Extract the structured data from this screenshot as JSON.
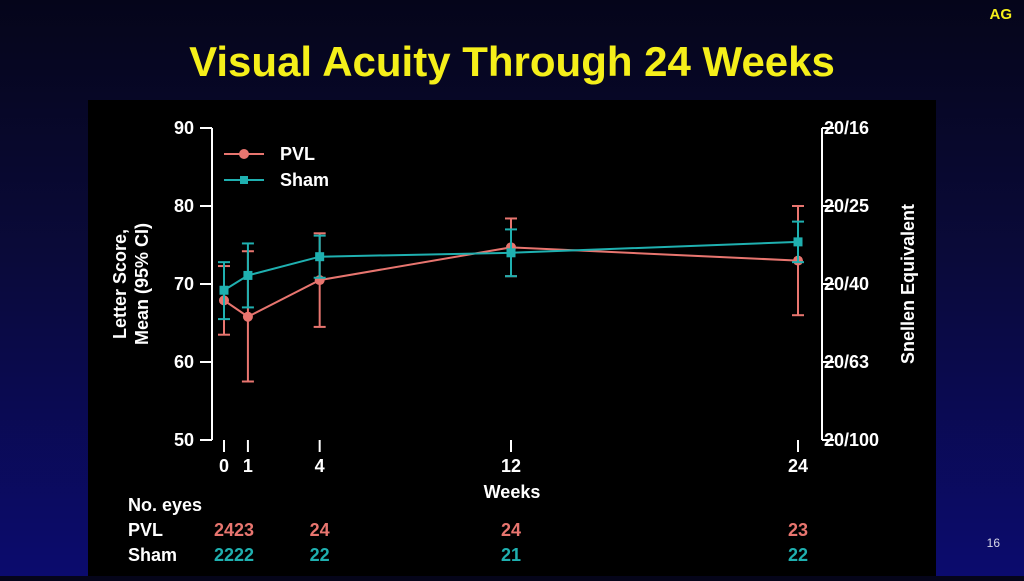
{
  "corner_tag": "AG",
  "slide_title": "Visual Acuity Through 24 Weeks",
  "page_number": "16",
  "colors": {
    "pvl": "#e8756f",
    "sham": "#1fb0b0",
    "axis": "#ffffff",
    "title": "#f5ef1a"
  },
  "chart_data": {
    "type": "line",
    "xlabel": "Weeks",
    "ylabel_line1": "Letter Score,",
    "ylabel_line2": "Mean (95% CI)",
    "y2label": "Snellen Equivalent",
    "x_ticks": [
      "0",
      "1",
      "4",
      "12",
      "24"
    ],
    "x_tick_values": [
      0,
      1,
      4,
      12,
      24
    ],
    "xlim": [
      0,
      24
    ],
    "ylim": [
      50,
      90
    ],
    "y_ticks": [
      50,
      60,
      70,
      80,
      90
    ],
    "y_tick_labels": [
      "50",
      "60",
      "70",
      "80",
      "90"
    ],
    "y2_ticks": [
      50,
      60,
      70,
      80,
      90
    ],
    "y2_tick_labels": [
      "20/100",
      "20/63",
      "20/40",
      "20/25",
      "20/16"
    ],
    "legend_position": "top-left",
    "series": [
      {
        "name": "PVL",
        "marker": "circle",
        "x": [
          0,
          1,
          4,
          12,
          24
        ],
        "y": [
          67.9,
          65.8,
          70.5,
          74.7,
          73.0
        ],
        "ci_low": [
          63.5,
          57.5,
          64.5,
          71.0,
          66.0
        ],
        "ci_high": [
          72.3,
          74.2,
          76.5,
          78.4,
          80.0
        ]
      },
      {
        "name": "Sham",
        "marker": "square",
        "x": [
          0,
          1,
          4,
          12,
          24
        ],
        "y": [
          69.2,
          71.1,
          73.5,
          74.0,
          75.4
        ],
        "ci_low": [
          65.5,
          67.0,
          70.8,
          71.0,
          72.8
        ],
        "ci_high": [
          72.8,
          75.2,
          76.2,
          77.0,
          78.0
        ]
      }
    ],
    "counts": {
      "header": "No. eyes",
      "rows": [
        {
          "label": "PVL",
          "values": [
            "24",
            "23",
            "24",
            "24",
            "23"
          ]
        },
        {
          "label": "Sham",
          "values": [
            "22",
            "22",
            "22",
            "21",
            "22"
          ]
        }
      ]
    }
  }
}
